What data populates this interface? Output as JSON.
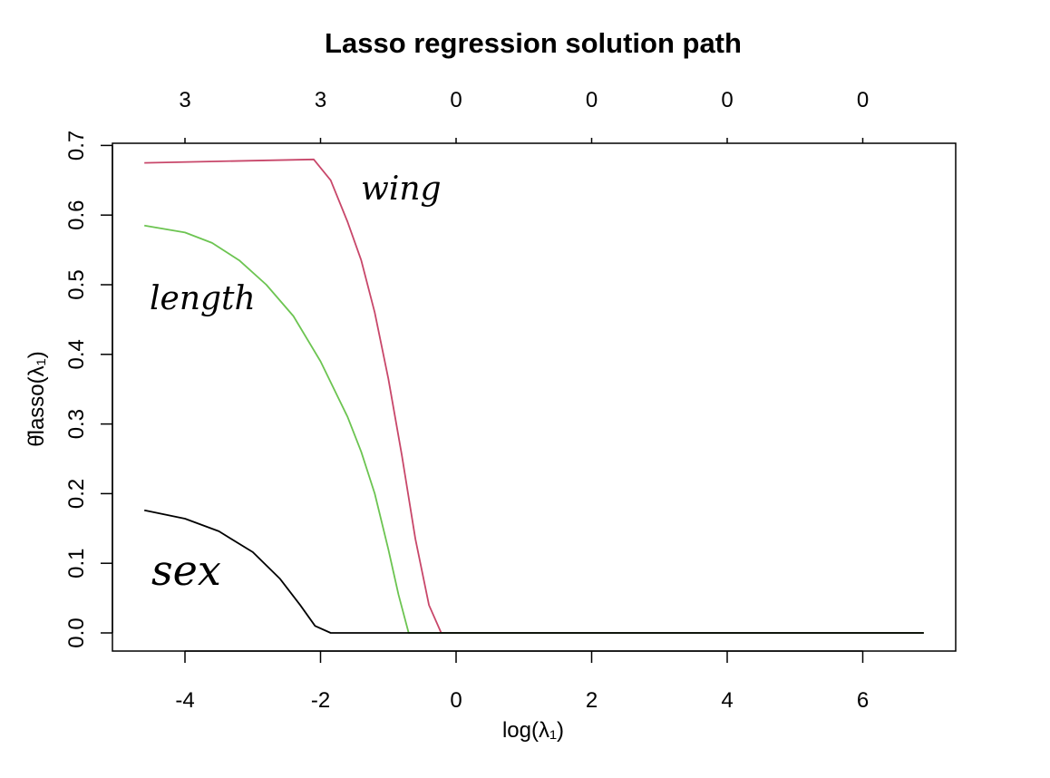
{
  "chart_data": {
    "type": "line",
    "title": "Lasso regression solution path",
    "xlabel": "log(λ₁)",
    "ylabel": "θ̂lasso(λ₁)",
    "xlim": [
      -4.6,
      6.9
    ],
    "ylim": [
      0,
      0.7
    ],
    "x_ticks": [
      -4,
      -2,
      0,
      2,
      4,
      6
    ],
    "y_ticks": [
      "0.0",
      "0.1",
      "0.2",
      "0.3",
      "0.4",
      "0.5",
      "0.6",
      "0.7"
    ],
    "top_ticks": {
      "x": [
        -4,
        -2,
        0,
        2,
        4,
        6
      ],
      "labels": [
        "3",
        "3",
        "0",
        "0",
        "0",
        "0"
      ]
    },
    "grid": false,
    "series": [
      {
        "name": "wing",
        "color": "#c8476a",
        "x": [
          -4.6,
          -2.1,
          -1.85,
          -1.6,
          -1.4,
          -1.2,
          -1.0,
          -0.8,
          -0.6,
          -0.4,
          -0.22,
          6.9
        ],
        "y": [
          0.675,
          0.68,
          0.65,
          0.59,
          0.535,
          0.46,
          0.365,
          0.255,
          0.135,
          0.04,
          0.0,
          0.0
        ]
      },
      {
        "name": "length",
        "color": "#6cc451",
        "x": [
          -4.6,
          -4.0,
          -3.6,
          -3.2,
          -2.8,
          -2.4,
          -2.0,
          -1.6,
          -1.4,
          -1.2,
          -1.0,
          -0.85,
          -0.7,
          6.9
        ],
        "y": [
          0.585,
          0.575,
          0.56,
          0.535,
          0.5,
          0.455,
          0.39,
          0.31,
          0.26,
          0.2,
          0.12,
          0.055,
          0.0,
          0.0
        ]
      },
      {
        "name": "sex",
        "color": "#000000",
        "x": [
          -4.6,
          -4.0,
          -3.5,
          -3.0,
          -2.6,
          -2.3,
          -2.08,
          -1.85,
          6.9
        ],
        "y": [
          0.176,
          0.164,
          0.146,
          0.116,
          0.078,
          0.04,
          0.01,
          0.0,
          0.0
        ]
      }
    ],
    "annotations": [
      {
        "text": "wing",
        "series": "wing"
      },
      {
        "text": "length",
        "series": "length"
      },
      {
        "text": "sex",
        "series": "sex"
      }
    ]
  }
}
